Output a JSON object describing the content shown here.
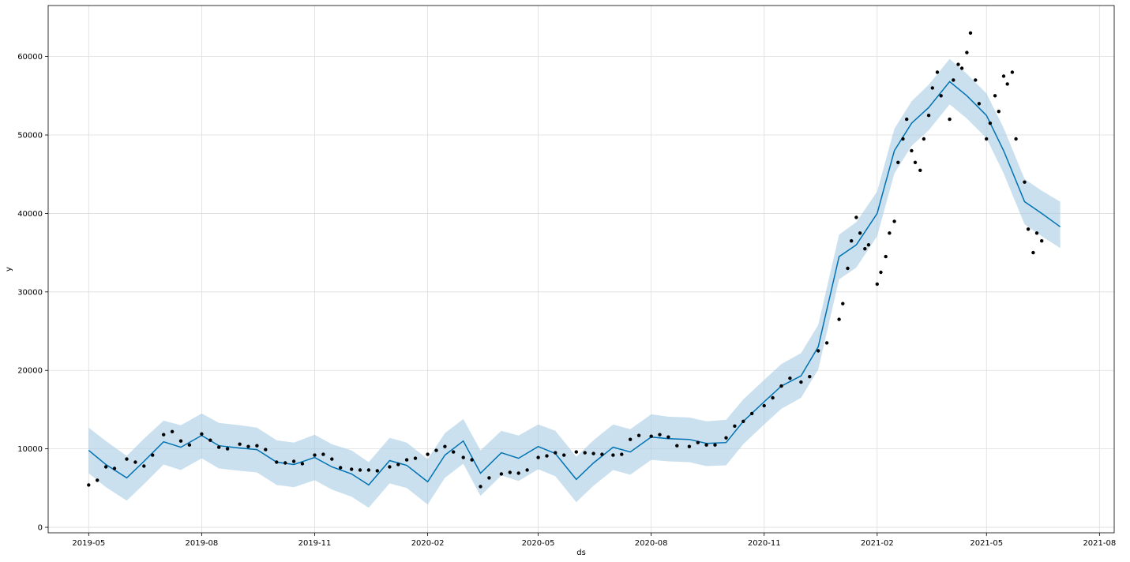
{
  "chart_data": {
    "type": "line",
    "title": "",
    "xlabel": "ds",
    "ylabel": "y",
    "xlim": [
      "2019-03-29",
      "2021-08-13"
    ],
    "ylim": [
      -700,
      66500
    ],
    "x_ticks": [
      "2019-05",
      "2019-08",
      "2019-11",
      "2020-02",
      "2020-05",
      "2020-08",
      "2020-11",
      "2021-02",
      "2021-05",
      "2021-08"
    ],
    "y_ticks": [
      0,
      10000,
      20000,
      30000,
      40000,
      50000,
      60000
    ],
    "grid": true,
    "colors": {
      "forecast": "#0072B2",
      "band": "#a6cbe3",
      "points": "#000000",
      "grid": "#dddddd"
    },
    "series": [
      {
        "kind": "forecast",
        "x": [
          "2019-05-01",
          "2019-05-15",
          "2019-06-01",
          "2019-06-15",
          "2019-07-01",
          "2019-07-15",
          "2019-08-01",
          "2019-08-15",
          "2019-09-01",
          "2019-09-15",
          "2019-10-01",
          "2019-10-15",
          "2019-11-01",
          "2019-11-15",
          "2019-12-01",
          "2019-12-15",
          "2020-01-01",
          "2020-01-15",
          "2020-02-01",
          "2020-02-15",
          "2020-03-01",
          "2020-03-15",
          "2020-04-01",
          "2020-04-15",
          "2020-05-01",
          "2020-05-15",
          "2020-06-01",
          "2020-06-15",
          "2020-07-01",
          "2020-07-15",
          "2020-08-01",
          "2020-08-15",
          "2020-09-01",
          "2020-09-15",
          "2020-10-01",
          "2020-10-15",
          "2020-11-01",
          "2020-11-15",
          "2020-12-01",
          "2020-12-15",
          "2021-01-01",
          "2021-01-15",
          "2021-02-01",
          "2021-02-15",
          "2021-03-01",
          "2021-03-15",
          "2021-04-01",
          "2021-04-15",
          "2021-05-01",
          "2021-05-15",
          "2021-06-01",
          "2021-06-15",
          "2021-06-30"
        ],
        "y": [
          9800,
          8000,
          6300,
          8400,
          10900,
          10200,
          11700,
          10400,
          10100,
          9900,
          8300,
          8000,
          8900,
          7700,
          6800,
          5400,
          8500,
          7900,
          5800,
          9200,
          11000,
          6900,
          9500,
          8800,
          10300,
          9400,
          6100,
          8200,
          10200,
          9600,
          11500,
          11300,
          11200,
          10700,
          10800,
          13500,
          16000,
          18000,
          19300,
          23000,
          34500,
          36000,
          40000,
          48000,
          51500,
          53500,
          56800,
          55000,
          52500,
          48000,
          41500,
          40000,
          38300
        ],
        "y_upper": [
          12700,
          11000,
          9100,
          11300,
          13600,
          13000,
          14500,
          13300,
          13000,
          12700,
          11100,
          10800,
          11800,
          10600,
          9800,
          8300,
          11400,
          10800,
          8700,
          12000,
          13800,
          9800,
          12300,
          11700,
          13100,
          12300,
          9000,
          11100,
          13100,
          12500,
          14400,
          14100,
          14000,
          13500,
          13700,
          16300,
          18800,
          20800,
          22200,
          25800,
          37300,
          38900,
          42800,
          50800,
          54300,
          56400,
          59700,
          57800,
          55300,
          50900,
          44400,
          42900,
          41500
        ],
        "y_lower": [
          6900,
          5100,
          3400,
          5500,
          8000,
          7300,
          8800,
          7500,
          7200,
          7000,
          5400,
          5100,
          6000,
          4800,
          3900,
          2500,
          5600,
          5000,
          2900,
          6300,
          8100,
          4000,
          6600,
          5900,
          7400,
          6500,
          3200,
          5300,
          7300,
          6700,
          8600,
          8400,
          8300,
          7800,
          7900,
          10600,
          13100,
          15100,
          16500,
          20100,
          31600,
          33100,
          37100,
          45100,
          48600,
          50600,
          53900,
          52100,
          49600,
          45100,
          38600,
          37100,
          35600
        ]
      },
      {
        "kind": "observed",
        "x": [
          "2019-05-01",
          "2019-05-08",
          "2019-05-15",
          "2019-05-22",
          "2019-06-01",
          "2019-06-08",
          "2019-06-15",
          "2019-06-22",
          "2019-07-01",
          "2019-07-08",
          "2019-07-15",
          "2019-07-22",
          "2019-08-01",
          "2019-08-08",
          "2019-08-15",
          "2019-08-22",
          "2019-09-01",
          "2019-09-08",
          "2019-09-15",
          "2019-09-22",
          "2019-10-01",
          "2019-10-08",
          "2019-10-15",
          "2019-10-22",
          "2019-11-01",
          "2019-11-08",
          "2019-11-15",
          "2019-11-22",
          "2019-12-01",
          "2019-12-08",
          "2019-12-15",
          "2019-12-22",
          "2020-01-01",
          "2020-01-08",
          "2020-01-15",
          "2020-01-22",
          "2020-02-01",
          "2020-02-08",
          "2020-02-15",
          "2020-02-22",
          "2020-03-01",
          "2020-03-08",
          "2020-03-15",
          "2020-03-22",
          "2020-04-01",
          "2020-04-08",
          "2020-04-15",
          "2020-04-22",
          "2020-05-01",
          "2020-05-08",
          "2020-05-15",
          "2020-05-22",
          "2020-06-01",
          "2020-06-08",
          "2020-06-15",
          "2020-06-22",
          "2020-07-01",
          "2020-07-08",
          "2020-07-15",
          "2020-07-22",
          "2020-08-01",
          "2020-08-08",
          "2020-08-15",
          "2020-08-22",
          "2020-09-01",
          "2020-09-08",
          "2020-09-15",
          "2020-09-22",
          "2020-10-01",
          "2020-10-08",
          "2020-10-15",
          "2020-10-22",
          "2020-11-01",
          "2020-11-08",
          "2020-11-15",
          "2020-11-22",
          "2020-12-01",
          "2020-12-08",
          "2020-12-15",
          "2020-12-22",
          "2021-01-01",
          "2021-01-04",
          "2021-01-08",
          "2021-01-11",
          "2021-01-15",
          "2021-01-18",
          "2021-01-22",
          "2021-01-25",
          "2021-02-01",
          "2021-02-04",
          "2021-02-08",
          "2021-02-11",
          "2021-02-15",
          "2021-02-18",
          "2021-02-22",
          "2021-02-25",
          "2021-03-01",
          "2021-03-04",
          "2021-03-08",
          "2021-03-11",
          "2021-03-15",
          "2021-03-18",
          "2021-03-22",
          "2021-03-25",
          "2021-04-01",
          "2021-04-04",
          "2021-04-08",
          "2021-04-11",
          "2021-04-15",
          "2021-04-18",
          "2021-04-22",
          "2021-04-25",
          "2021-05-01",
          "2021-05-04",
          "2021-05-08",
          "2021-05-11",
          "2021-05-15",
          "2021-05-18",
          "2021-05-22",
          "2021-05-25",
          "2021-06-01",
          "2021-06-04",
          "2021-06-08",
          "2021-06-11",
          "2021-06-15"
        ],
        "y": [
          5400,
          6000,
          7700,
          7500,
          8700,
          8300,
          7800,
          9200,
          11800,
          12200,
          11000,
          10500,
          11900,
          11100,
          10200,
          10000,
          10600,
          10300,
          10400,
          9900,
          8300,
          8200,
          8400,
          8100,
          9200,
          9300,
          8700,
          7600,
          7400,
          7300,
          7300,
          7200,
          7700,
          8000,
          8600,
          8800,
          9300,
          9800,
          10300,
          9600,
          8900,
          8600,
          5200,
          6300,
          6800,
          7000,
          6900,
          7300,
          8900,
          9100,
          9500,
          9200,
          9600,
          9500,
          9400,
          9300,
          9200,
          9300,
          11200,
          11700,
          11600,
          11800,
          11500,
          10400,
          10300,
          10800,
          10500,
          10500,
          11400,
          12900,
          13500,
          14500,
          15500,
          16500,
          18000,
          19000,
          18500,
          19200,
          22500,
          23500,
          26500,
          28500,
          33000,
          36500,
          39500,
          37500,
          35500,
          36000,
          31000,
          32500,
          34500,
          37500,
          39000,
          46500,
          49500,
          52000,
          48000,
          46500,
          45500,
          49500,
          52500,
          56000,
          58000,
          55000,
          52000,
          57000,
          59000,
          58500,
          60500,
          63000,
          57000,
          54000,
          49500,
          51500,
          55000,
          53000,
          57500,
          56500,
          58000,
          49500,
          44000,
          38000,
          35000,
          37500,
          36500
        ],
        "y_dup": []
      }
    ]
  },
  "axes": {
    "xlabel": "ds",
    "ylabel": "y"
  }
}
